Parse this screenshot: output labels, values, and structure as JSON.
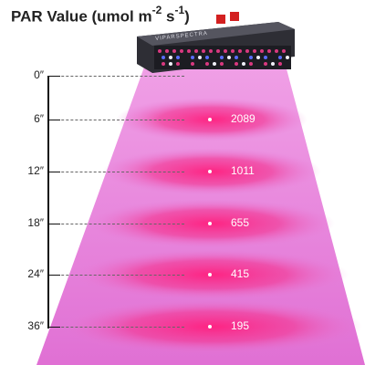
{
  "title": {
    "prefix": "PAR Value (umol m",
    "exp1": "-2",
    "mid": " s",
    "exp2": "-1",
    "suffix": ")"
  },
  "fixture": {
    "brand": "VIPARSPECTRA"
  },
  "colors": {
    "beam": "#e97fd8",
    "beam_edge": "#f6c1ee",
    "spot_center": "#ff2f8a",
    "fixture_body": "#3d3d45"
  },
  "distances": [
    {
      "label": "0″"
    },
    {
      "label": "6″",
      "par": "2089"
    },
    {
      "label": "12″",
      "par": "1011"
    },
    {
      "label": "18″",
      "par": "655"
    },
    {
      "label": "24″",
      "par": "415"
    },
    {
      "label": "36″",
      "par": "195"
    }
  ]
}
